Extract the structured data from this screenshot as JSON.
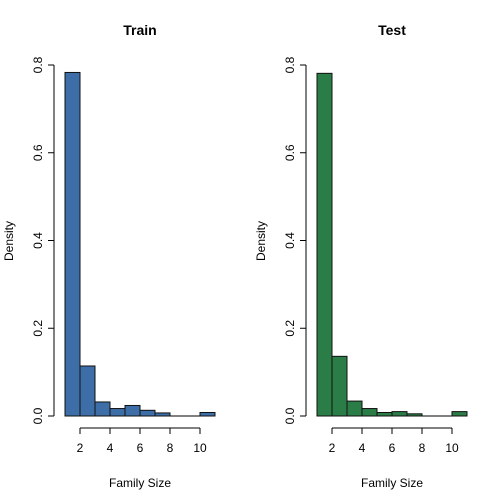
{
  "colors": {
    "train": "#3d6ea8",
    "test": "#2b7d47"
  },
  "chart_data": [
    {
      "type": "bar",
      "title": "Train",
      "xlabel": "Family Size",
      "ylabel": "Density",
      "bin_edges": [
        1,
        2,
        3,
        4,
        5,
        6,
        7,
        8,
        9,
        10,
        11
      ],
      "values": [
        0.783,
        0.114,
        0.032,
        0.017,
        0.024,
        0.013,
        0.007,
        0.0,
        0.0,
        0.008
      ],
      "xlim": [
        1,
        11
      ],
      "ylim": [
        0,
        0.8
      ],
      "xticks": [
        2,
        4,
        6,
        8,
        10
      ],
      "yticks": [
        "0.0",
        "0.2",
        "0.4",
        "0.6",
        "0.8"
      ],
      "color": "#3d6ea8",
      "grid": false
    },
    {
      "type": "bar",
      "title": "Test",
      "xlabel": "Family Size",
      "ylabel": "Density",
      "bin_edges": [
        1,
        2,
        3,
        4,
        5,
        6,
        7,
        8,
        9,
        10,
        11
      ],
      "values": [
        0.781,
        0.136,
        0.034,
        0.017,
        0.008,
        0.01,
        0.005,
        0.0,
        0.0,
        0.01
      ],
      "xlim": [
        1,
        11
      ],
      "ylim": [
        0,
        0.8
      ],
      "xticks": [
        2,
        4,
        6,
        8,
        10
      ],
      "yticks": [
        "0.0",
        "0.2",
        "0.4",
        "0.6",
        "0.8"
      ],
      "color": "#2b7d47",
      "grid": false
    }
  ]
}
